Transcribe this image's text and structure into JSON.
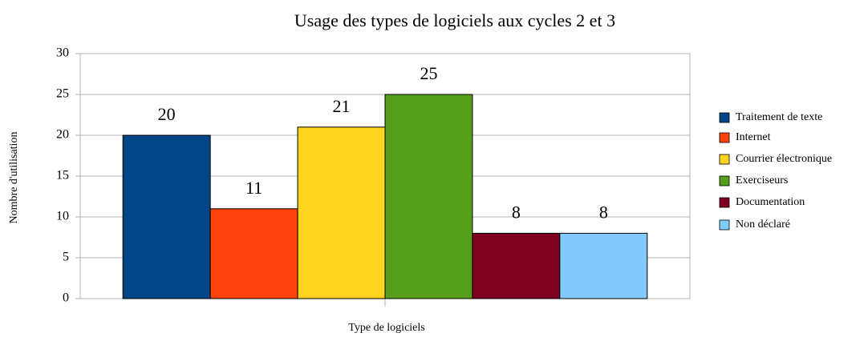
{
  "chart_data": {
    "type": "bar",
    "title": "Usage des types de logiciels aux cycles 2 et 3",
    "xlabel": "Type de logiciels",
    "ylabel": "Nombre d'utilisation",
    "categories": [
      null
    ],
    "series": [
      {
        "name": "Traitement de texte",
        "color": "#004586",
        "values": [
          20
        ]
      },
      {
        "name": "Internet",
        "color": "#ff420e",
        "values": [
          11
        ]
      },
      {
        "name": "Courrier électronique",
        "color": "#ffd320",
        "values": [
          21
        ]
      },
      {
        "name": "Exerciseurs",
        "color": "#579d1c",
        "values": [
          25
        ]
      },
      {
        "name": "Documentation",
        "color": "#7e0021",
        "values": [
          8
        ]
      },
      {
        "name": "Non déclaré",
        "color": "#83caff",
        "values": [
          8
        ]
      }
    ],
    "ylim": [
      0,
      30
    ],
    "yticks": [
      0,
      5,
      10,
      15,
      20,
      25,
      30
    ],
    "grid": true,
    "legend": "right"
  }
}
